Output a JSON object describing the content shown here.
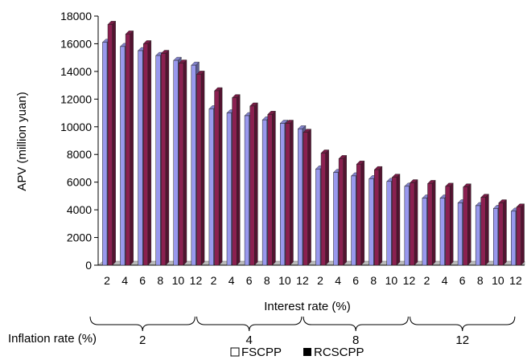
{
  "chart_data": {
    "type": "bar",
    "ylabel": "APV (million yuan)",
    "xlabel": "Interest rate (%)",
    "group_label": "Inflation rate (%)",
    "ylim": [
      0,
      18000
    ],
    "yticks": [
      0,
      2000,
      4000,
      6000,
      8000,
      10000,
      12000,
      14000,
      16000,
      18000
    ],
    "legend_position": "bottom-center",
    "groups": [
      {
        "label": "2",
        "categories": [
          "2",
          "4",
          "6",
          "8",
          "10",
          "12"
        ]
      },
      {
        "label": "4",
        "categories": [
          "2",
          "4",
          "6",
          "8",
          "10",
          "12"
        ]
      },
      {
        "label": "8",
        "categories": [
          "2",
          "4",
          "6",
          "8",
          "10",
          "12"
        ]
      },
      {
        "label": "12",
        "categories": [
          "2",
          "4",
          "6",
          "8",
          "10",
          "12"
        ]
      }
    ],
    "series": [
      {
        "name": "FSCPP",
        "color": "#9999ee",
        "values": [
          16100,
          15800,
          15500,
          15150,
          14800,
          14450,
          11300,
          11000,
          10800,
          10500,
          10250,
          9850,
          6950,
          6700,
          6450,
          6250,
          6050,
          5700,
          4850,
          4850,
          4500,
          4300,
          4100,
          3900
        ]
      },
      {
        "name": "RCSCPP",
        "color": "#8b2050",
        "values": [
          17400,
          16700,
          16000,
          15300,
          14600,
          13800,
          12600,
          12100,
          11500,
          10900,
          10250,
          9600,
          8100,
          7700,
          7300,
          6900,
          6350,
          5950,
          5900,
          5700,
          5650,
          4900,
          4500,
          4200
        ]
      }
    ]
  }
}
